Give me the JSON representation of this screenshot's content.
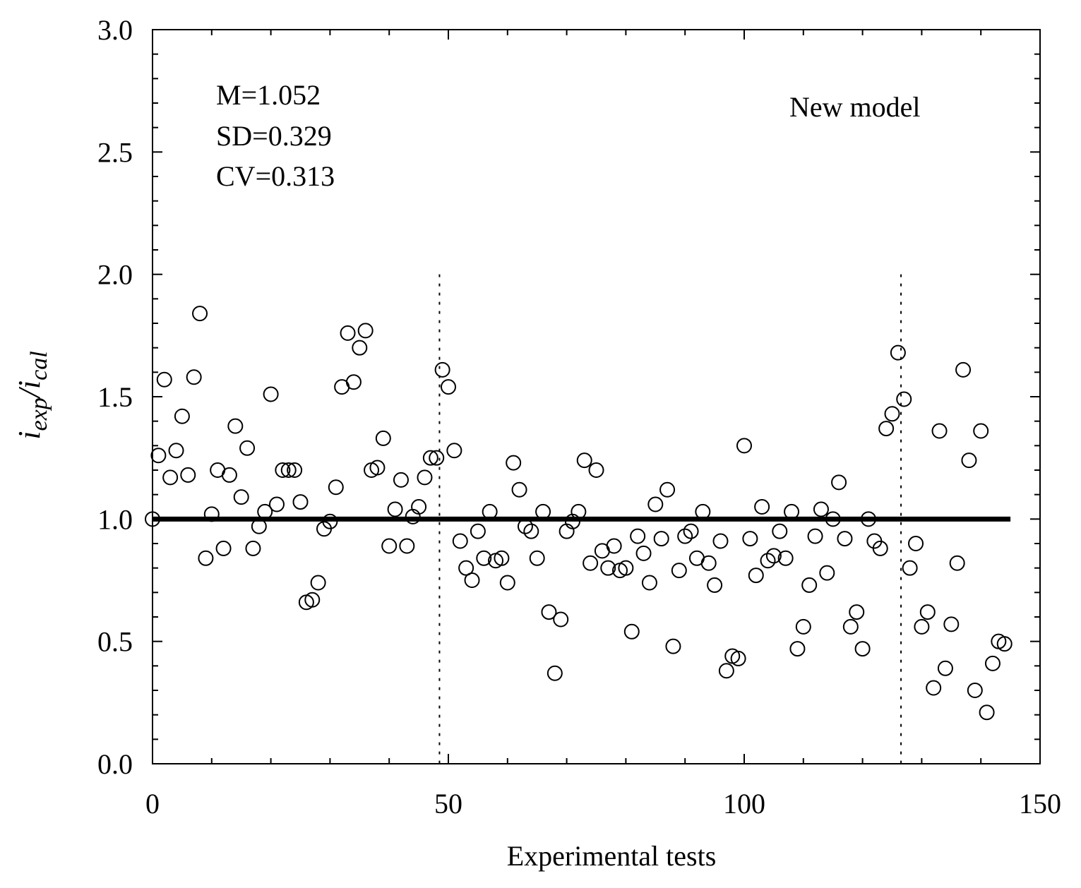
{
  "chart_data": {
    "type": "scatter",
    "title": "",
    "xlabel": "Experimental tests",
    "ylabel": {
      "numerator": "i",
      "numerator_sub": "exp",
      "separator": "/",
      "denominator": "i",
      "denominator_sub": "cal"
    },
    "xlim": [
      0,
      150
    ],
    "ylim": [
      0,
      3.0
    ],
    "x_ticks": [
      0,
      50,
      100,
      150
    ],
    "x_tick_labels": [
      "0",
      "50",
      "100",
      "150"
    ],
    "y_ticks": [
      0,
      0.5,
      1.0,
      1.5,
      2.0,
      2.5,
      3.0
    ],
    "y_tick_labels": [
      "0.0",
      "0.5",
      "1.0",
      "1.5",
      "2.0",
      "2.5",
      "3.0"
    ],
    "grid": false,
    "stats": [
      "M=1.052",
      "SD=0.329",
      "CV=0.313"
    ],
    "model_label": "New model",
    "reference_line": {
      "y": 1.0,
      "x_start": 0,
      "x_end": 145
    },
    "separators": [
      {
        "x": 48.5,
        "y_top": 2.0
      },
      {
        "x": 126.5,
        "y_top": 2.0
      }
    ],
    "series": [
      {
        "name": "i_exp/i_cal",
        "marker": "open-circle",
        "points": [
          [
            0,
            1.0
          ],
          [
            1,
            1.26
          ],
          [
            2,
            1.57
          ],
          [
            3,
            1.17
          ],
          [
            4,
            1.28
          ],
          [
            5,
            1.42
          ],
          [
            6,
            1.18
          ],
          [
            7,
            1.58
          ],
          [
            8,
            1.84
          ],
          [
            9,
            0.84
          ],
          [
            10,
            1.02
          ],
          [
            11,
            1.2
          ],
          [
            12,
            0.88
          ],
          [
            13,
            1.18
          ],
          [
            14,
            1.38
          ],
          [
            15,
            1.09
          ],
          [
            16,
            1.29
          ],
          [
            17,
            0.88
          ],
          [
            18,
            0.97
          ],
          [
            19,
            1.03
          ],
          [
            20,
            1.51
          ],
          [
            21,
            1.06
          ],
          [
            22,
            1.2
          ],
          [
            23,
            1.2
          ],
          [
            24,
            1.2
          ],
          [
            25,
            1.07
          ],
          [
            26,
            0.66
          ],
          [
            27,
            0.67
          ],
          [
            28,
            0.74
          ],
          [
            29,
            0.96
          ],
          [
            30,
            0.99
          ],
          [
            31,
            1.13
          ],
          [
            32,
            1.54
          ],
          [
            33,
            1.76
          ],
          [
            34,
            1.56
          ],
          [
            35,
            1.7
          ],
          [
            36,
            1.77
          ],
          [
            37,
            1.2
          ],
          [
            38,
            1.21
          ],
          [
            39,
            1.33
          ],
          [
            40,
            0.89
          ],
          [
            41,
            1.04
          ],
          [
            42,
            1.16
          ],
          [
            43,
            0.89
          ],
          [
            44,
            1.01
          ],
          [
            45,
            1.05
          ],
          [
            46,
            1.17
          ],
          [
            47,
            1.25
          ],
          [
            48,
            1.25
          ],
          [
            49,
            1.61
          ],
          [
            50,
            1.54
          ],
          [
            51,
            1.28
          ],
          [
            52,
            0.91
          ],
          [
            53,
            0.8
          ],
          [
            54,
            0.75
          ],
          [
            55,
            0.95
          ],
          [
            56,
            0.84
          ],
          [
            57,
            1.03
          ],
          [
            58,
            0.83
          ],
          [
            59,
            0.84
          ],
          [
            60,
            0.74
          ],
          [
            61,
            1.23
          ],
          [
            62,
            1.12
          ],
          [
            63,
            0.97
          ],
          [
            64,
            0.95
          ],
          [
            65,
            0.84
          ],
          [
            66,
            1.03
          ],
          [
            67,
            0.62
          ],
          [
            68,
            0.37
          ],
          [
            69,
            0.59
          ],
          [
            70,
            0.95
          ],
          [
            71,
            0.99
          ],
          [
            72,
            1.03
          ],
          [
            73,
            1.24
          ],
          [
            74,
            0.82
          ],
          [
            75,
            1.2
          ],
          [
            76,
            0.87
          ],
          [
            77,
            0.8
          ],
          [
            78,
            0.89
          ],
          [
            79,
            0.79
          ],
          [
            80,
            0.8
          ],
          [
            81,
            0.54
          ],
          [
            82,
            0.93
          ],
          [
            83,
            0.86
          ],
          [
            84,
            0.74
          ],
          [
            85,
            1.06
          ],
          [
            86,
            0.92
          ],
          [
            87,
            1.12
          ],
          [
            88,
            0.48
          ],
          [
            89,
            0.79
          ],
          [
            90,
            0.93
          ],
          [
            91,
            0.95
          ],
          [
            92,
            0.84
          ],
          [
            93,
            1.03
          ],
          [
            94,
            0.82
          ],
          [
            95,
            0.73
          ],
          [
            96,
            0.91
          ],
          [
            97,
            0.38
          ],
          [
            98,
            0.44
          ],
          [
            99,
            0.43
          ],
          [
            100,
            1.3
          ],
          [
            101,
            0.92
          ],
          [
            102,
            0.77
          ],
          [
            103,
            1.05
          ],
          [
            104,
            0.83
          ],
          [
            105,
            0.85
          ],
          [
            106,
            0.95
          ],
          [
            107,
            0.84
          ],
          [
            108,
            1.03
          ],
          [
            109,
            0.47
          ],
          [
            110,
            0.56
          ],
          [
            111,
            0.73
          ],
          [
            112,
            0.93
          ],
          [
            113,
            1.04
          ],
          [
            114,
            0.78
          ],
          [
            115,
            1.0
          ],
          [
            116,
            1.15
          ],
          [
            117,
            0.92
          ],
          [
            118,
            0.56
          ],
          [
            119,
            0.62
          ],
          [
            120,
            0.47
          ],
          [
            121,
            1.0
          ],
          [
            122,
            0.91
          ],
          [
            123,
            0.88
          ],
          [
            124,
            1.37
          ],
          [
            125,
            1.43
          ],
          [
            126,
            1.68
          ],
          [
            127,
            1.49
          ],
          [
            128,
            0.8
          ],
          [
            129,
            0.9
          ],
          [
            130,
            0.56
          ],
          [
            131,
            0.62
          ],
          [
            132,
            0.31
          ],
          [
            133,
            1.36
          ],
          [
            134,
            0.39
          ],
          [
            135,
            0.57
          ],
          [
            136,
            0.82
          ],
          [
            137,
            1.61
          ],
          [
            138,
            1.24
          ],
          [
            139,
            0.3
          ],
          [
            140,
            1.36
          ],
          [
            141,
            0.21
          ],
          [
            142,
            0.41
          ],
          [
            143,
            0.5
          ],
          [
            144,
            0.49
          ]
        ]
      }
    ]
  }
}
